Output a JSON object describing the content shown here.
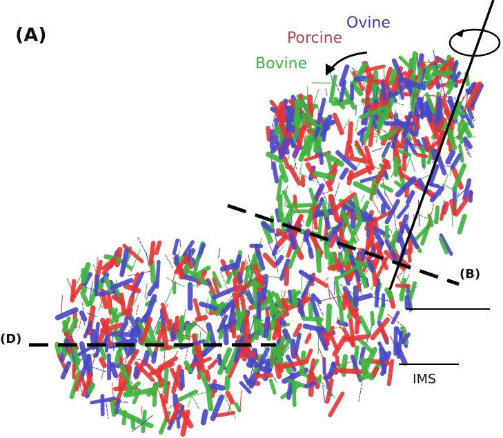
{
  "panel_label": "(A)",
  "legend": {
    "ovine": "Ovine",
    "porcine": "Porcine",
    "bovine": "Bovine"
  },
  "cut_labels": {
    "b": "(B)",
    "d": "(D)"
  },
  "region_label": "IMS"
}
